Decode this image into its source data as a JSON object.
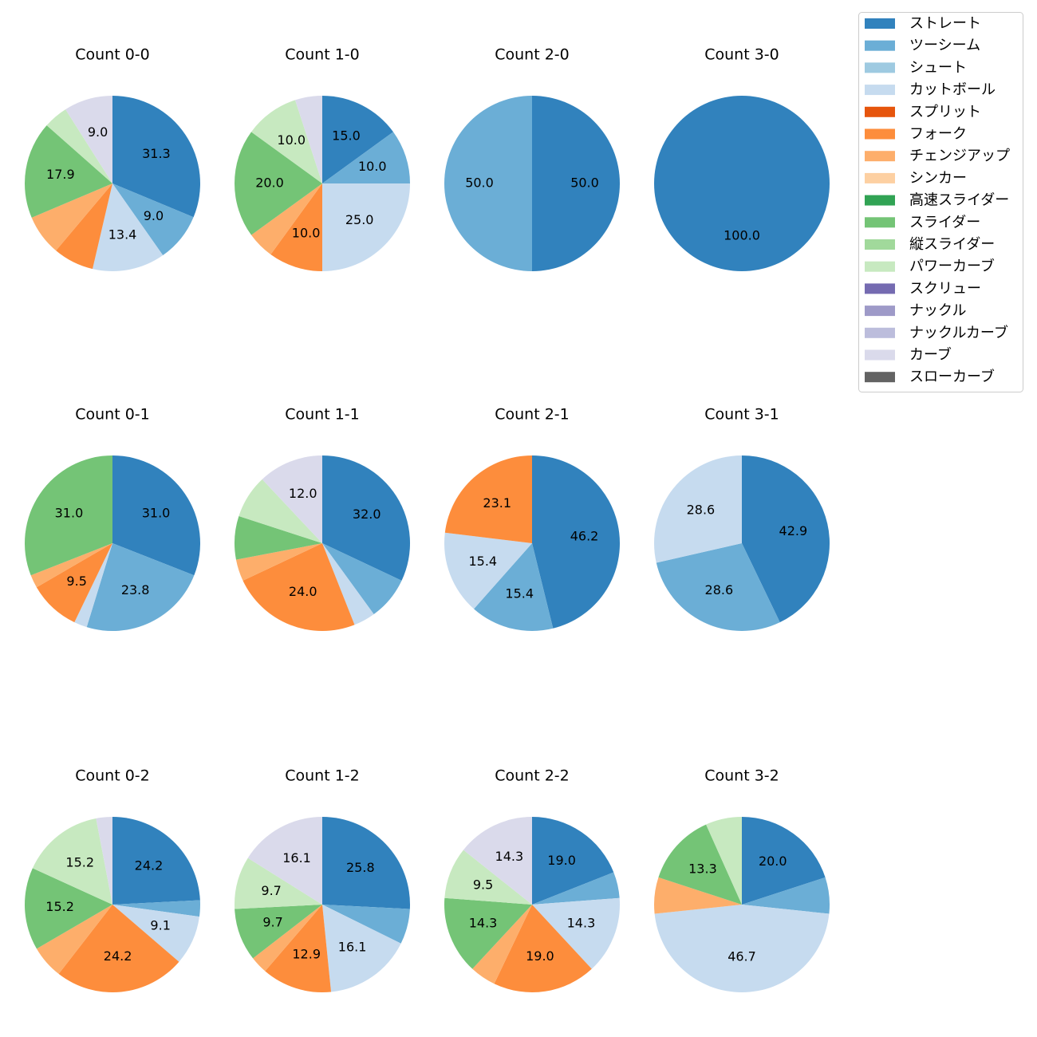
{
  "legend": {
    "names": [
      "ストレート",
      "ツーシーム",
      "シュート",
      "カットボール",
      "スプリット",
      "フォーク",
      "チェンジアップ",
      "シンカー",
      "高速スライダー",
      "スライダー",
      "縦スライダー",
      "パワーカーブ",
      "スクリュー",
      "ナックル",
      "ナックルカーブ",
      "カーブ",
      "スローカーブ"
    ],
    "colors": [
      "#3182bd",
      "#6baed6",
      "#9ecae1",
      "#c6dbef",
      "#e6550d",
      "#fd8d3c",
      "#fdae6b",
      "#fdd0a2",
      "#31a354",
      "#74c476",
      "#a1d99b",
      "#c7e9c0",
      "#756bb1",
      "#9e9ac8",
      "#bcbddc",
      "#dadaeb",
      "#636363"
    ]
  },
  "chart_data": [
    {
      "type": "pie",
      "title": "Count 0-0",
      "categories": [
        "ストレート",
        "ツーシーム",
        "カットボール",
        "フォーク",
        "チェンジアップ",
        "スライダー",
        "パワーカーブ",
        "カーブ"
      ],
      "values": [
        31.3,
        9.0,
        13.4,
        7.5,
        7.5,
        17.9,
        4.5,
        9.0
      ],
      "value_labels": [
        "31.3",
        "9.0",
        "13.4",
        null,
        null,
        "17.9",
        null,
        "9.0"
      ],
      "colors": [
        "#3182bd",
        "#6baed6",
        "#c6dbef",
        "#fd8d3c",
        "#fdae6b",
        "#74c476",
        "#c7e9c0",
        "#dadaeb"
      ]
    },
    {
      "type": "pie",
      "title": "Count 1-0",
      "categories": [
        "ストレート",
        "ツーシーム",
        "カットボール",
        "フォーク",
        "チェンジアップ",
        "スライダー",
        "パワーカーブ",
        "カーブ"
      ],
      "values": [
        15.0,
        10.0,
        25.0,
        10.0,
        5.0,
        20.0,
        10.0,
        5.0
      ],
      "value_labels": [
        "15.0",
        "10.0",
        "25.0",
        "10.0",
        null,
        "20.0",
        "10.0",
        null
      ],
      "colors": [
        "#3182bd",
        "#6baed6",
        "#c6dbef",
        "#fd8d3c",
        "#fdae6b",
        "#74c476",
        "#c7e9c0",
        "#dadaeb"
      ]
    },
    {
      "type": "pie",
      "title": "Count 2-0",
      "categories": [
        "ストレート",
        "ツーシーム"
      ],
      "values": [
        50.0,
        50.0
      ],
      "value_labels": [
        "50.0",
        "50.0"
      ],
      "colors": [
        "#3182bd",
        "#6baed6"
      ]
    },
    {
      "type": "pie",
      "title": "Count 3-0",
      "categories": [
        "ストレート"
      ],
      "values": [
        100.0
      ],
      "value_labels": [
        "100.0"
      ],
      "colors": [
        "#3182bd"
      ]
    },
    {
      "type": "pie",
      "title": "Count 0-1",
      "categories": [
        "ストレート",
        "ツーシーム",
        "カットボール",
        "フォーク",
        "チェンジアップ",
        "スライダー"
      ],
      "values": [
        31.0,
        23.8,
        2.4,
        9.5,
        2.4,
        31.0
      ],
      "value_labels": [
        "31.0",
        "23.8",
        null,
        "9.5",
        null,
        "31.0"
      ],
      "colors": [
        "#3182bd",
        "#6baed6",
        "#c6dbef",
        "#fd8d3c",
        "#fdae6b",
        "#74c476"
      ]
    },
    {
      "type": "pie",
      "title": "Count 1-1",
      "categories": [
        "ストレート",
        "ツーシーム",
        "カットボール",
        "フォーク",
        "チェンジアップ",
        "スライダー",
        "パワーカーブ",
        "カーブ"
      ],
      "values": [
        32.0,
        8.0,
        4.0,
        24.0,
        4.0,
        8.0,
        8.0,
        12.0
      ],
      "value_labels": [
        "32.0",
        null,
        null,
        "24.0",
        null,
        null,
        null,
        "12.0"
      ],
      "colors": [
        "#3182bd",
        "#6baed6",
        "#c6dbef",
        "#fd8d3c",
        "#fdae6b",
        "#74c476",
        "#c7e9c0",
        "#dadaeb"
      ]
    },
    {
      "type": "pie",
      "title": "Count 2-1",
      "categories": [
        "ストレート",
        "ツーシーム",
        "カットボール",
        "フォーク"
      ],
      "values": [
        46.2,
        15.4,
        15.4,
        23.1
      ],
      "value_labels": [
        "46.2",
        "15.4",
        "15.4",
        "23.1"
      ],
      "colors": [
        "#3182bd",
        "#6baed6",
        "#c6dbef",
        "#fd8d3c"
      ]
    },
    {
      "type": "pie",
      "title": "Count 3-1",
      "categories": [
        "ストレート",
        "ツーシーム",
        "カットボール"
      ],
      "values": [
        42.9,
        28.6,
        28.6
      ],
      "value_labels": [
        "42.9",
        "28.6",
        "28.6"
      ],
      "colors": [
        "#3182bd",
        "#6baed6",
        "#c6dbef"
      ]
    },
    {
      "type": "pie",
      "title": "Count 0-2",
      "categories": [
        "ストレート",
        "ツーシーム",
        "カットボール",
        "フォーク",
        "チェンジアップ",
        "スライダー",
        "パワーカーブ",
        "カーブ"
      ],
      "values": [
        24.2,
        3.0,
        9.1,
        24.2,
        6.1,
        15.2,
        15.2,
        3.0
      ],
      "value_labels": [
        "24.2",
        null,
        "9.1",
        "24.2",
        null,
        "15.2",
        "15.2",
        null
      ],
      "colors": [
        "#3182bd",
        "#6baed6",
        "#c6dbef",
        "#fd8d3c",
        "#fdae6b",
        "#74c476",
        "#c7e9c0",
        "#dadaeb"
      ]
    },
    {
      "type": "pie",
      "title": "Count 1-2",
      "categories": [
        "ストレート",
        "ツーシーム",
        "カットボール",
        "フォーク",
        "チェンジアップ",
        "スライダー",
        "パワーカーブ",
        "カーブ"
      ],
      "values": [
        25.8,
        6.5,
        16.1,
        12.9,
        3.2,
        9.7,
        9.7,
        16.1
      ],
      "value_labels": [
        "25.8",
        null,
        "16.1",
        "12.9",
        null,
        "9.7",
        "9.7",
        "16.1"
      ],
      "colors": [
        "#3182bd",
        "#6baed6",
        "#c6dbef",
        "#fd8d3c",
        "#fdae6b",
        "#74c476",
        "#c7e9c0",
        "#dadaeb"
      ]
    },
    {
      "type": "pie",
      "title": "Count 2-2",
      "categories": [
        "ストレート",
        "ツーシーム",
        "カットボール",
        "フォーク",
        "チェンジアップ",
        "スライダー",
        "パワーカーブ",
        "カーブ"
      ],
      "values": [
        19.0,
        4.8,
        14.3,
        19.0,
        4.8,
        14.3,
        9.5,
        14.3
      ],
      "value_labels": [
        "19.0",
        null,
        "14.3",
        "19.0",
        null,
        "14.3",
        "9.5",
        "14.3"
      ],
      "colors": [
        "#3182bd",
        "#6baed6",
        "#c6dbef",
        "#fd8d3c",
        "#fdae6b",
        "#74c476",
        "#c7e9c0",
        "#dadaeb"
      ]
    },
    {
      "type": "pie",
      "title": "Count 3-2",
      "categories": [
        "ストレート",
        "ツーシーム",
        "カットボール",
        "チェンジアップ",
        "スライダー",
        "パワーカーブ"
      ],
      "values": [
        20.0,
        6.7,
        46.7,
        6.7,
        13.3,
        6.7
      ],
      "value_labels": [
        "20.0",
        null,
        "46.7",
        null,
        "13.3",
        null
      ],
      "colors": [
        "#3182bd",
        "#6baed6",
        "#c6dbef",
        "#fdae6b",
        "#74c476",
        "#c7e9c0"
      ]
    }
  ]
}
